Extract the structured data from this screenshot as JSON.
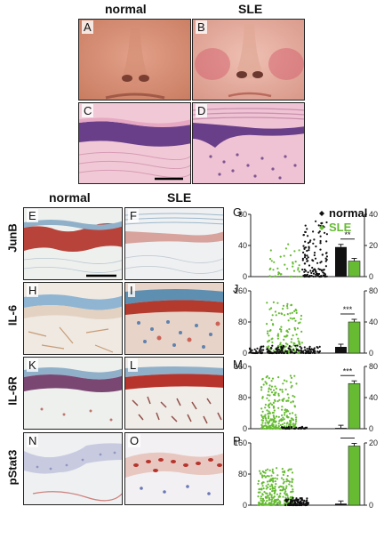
{
  "top": {
    "col_normal": "normal",
    "col_sle": "SLE",
    "panels": [
      "A",
      "B",
      "C",
      "D"
    ]
  },
  "bottom": {
    "col_normal": "normal",
    "col_sle": "SLE",
    "rows": [
      {
        "label": "JunB",
        "left": "E",
        "right": "F",
        "graph": "G"
      },
      {
        "label": "IL-6",
        "left": "H",
        "right": "I",
        "graph": "J"
      },
      {
        "label": "IL-6R",
        "left": "K",
        "right": "L",
        "graph": "M"
      },
      {
        "label": "pStat3",
        "left": "N",
        "right": "O",
        "graph": "P"
      }
    ]
  },
  "legend": {
    "normal": "normal",
    "sle": "SLE"
  },
  "colors": {
    "normal": "#111111",
    "sle": "#66bb33"
  },
  "chart_data": [
    {
      "type": "scatter",
      "panel": "G",
      "ylim_left": [
        0,
        80
      ],
      "yticks_left": [
        0,
        40,
        80
      ],
      "ylim_right": [
        0,
        40
      ],
      "yticks_right": [
        0,
        20,
        40
      ],
      "bars": {
        "normal": 19,
        "sle": 10
      },
      "significance": "**"
    },
    {
      "type": "scatter",
      "panel": "J",
      "ylim_left": [
        0,
        160
      ],
      "yticks_left": [
        0,
        80,
        160
      ],
      "ylim_right": [
        0,
        80
      ],
      "yticks_right": [
        0,
        40,
        80
      ],
      "bars": {
        "normal": 8,
        "sle": 40
      },
      "significance": "***"
    },
    {
      "type": "scatter",
      "panel": "M",
      "ylim_left": [
        0,
        160
      ],
      "yticks_left": [
        0,
        80,
        160
      ],
      "ylim_right": [
        0,
        80
      ],
      "yticks_right": [
        0,
        40,
        80
      ],
      "bars": {
        "normal": 1,
        "sle": 58
      },
      "significance": "***"
    },
    {
      "type": "scatter",
      "panel": "P",
      "ylim_left": [
        0,
        160
      ],
      "yticks_left": [
        0,
        80,
        160
      ],
      "ylim_right": [
        0,
        20
      ],
      "yticks_right": [
        0,
        20
      ],
      "bars": {
        "normal": 0.5,
        "sle": 19
      },
      "significance": "***"
    }
  ]
}
